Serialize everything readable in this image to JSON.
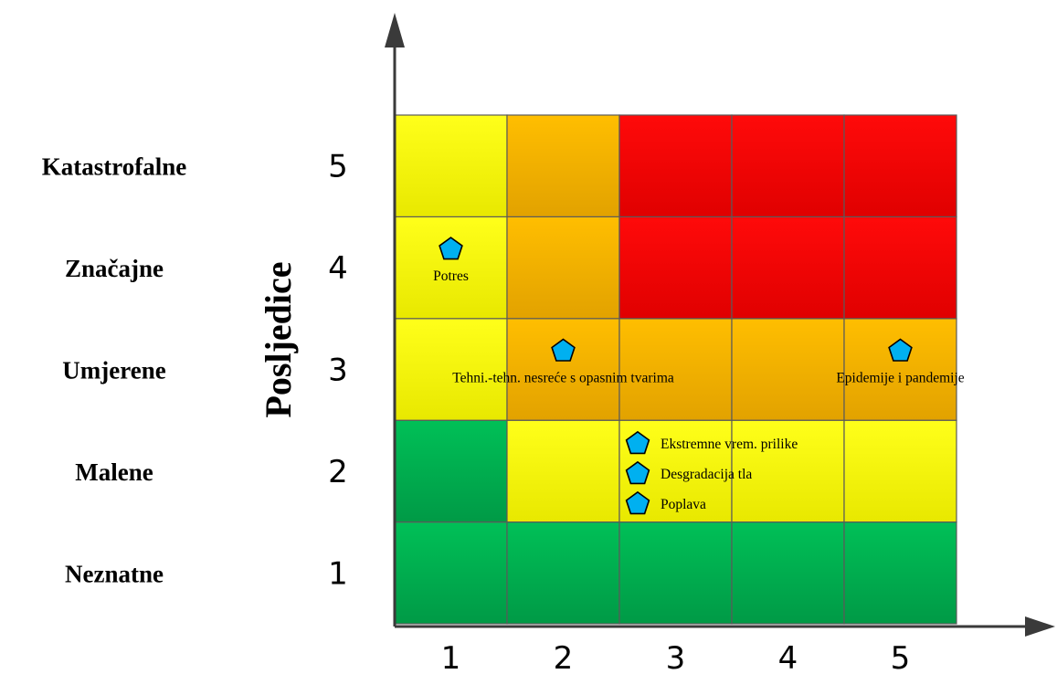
{
  "chart_data": {
    "type": "heatmap",
    "ylabel": "Posljedice",
    "xlabel": "",
    "x_ticks": [
      "1",
      "2",
      "3",
      "4",
      "5"
    ],
    "y_ticks": [
      "1",
      "2",
      "3",
      "4",
      "5"
    ],
    "y_categories": [
      "Neznatne",
      "Malene",
      "Umjerene",
      "Značajne",
      "Katastrofalne"
    ],
    "colors": {
      "green": "#00b050",
      "yellow": "#ffff00",
      "orange": "#ffc000",
      "red": "#ff0000"
    },
    "grid": [
      [
        "green",
        "green",
        "green",
        "green",
        "green"
      ],
      [
        "green",
        "yellow",
        "yellow",
        "yellow",
        "yellow"
      ],
      [
        "yellow",
        "orange",
        "orange",
        "orange",
        "orange"
      ],
      [
        "yellow",
        "orange",
        "red",
        "red",
        "red"
      ],
      [
        "yellow",
        "orange",
        "red",
        "red",
        "red"
      ]
    ],
    "risks": [
      {
        "label": "Potres",
        "x": 1,
        "y": 4
      },
      {
        "label": "Tehni.-tehn. nesreće s opasnim tvarima",
        "x": 2,
        "y": 3
      },
      {
        "label": "Epidemije i pandemije",
        "x": 5,
        "y": 3
      },
      {
        "label": "Ekstremne vrem. prilike",
        "x": 3,
        "y": 2
      },
      {
        "label": "Desgradacija tla",
        "x": 3,
        "y": 2
      },
      {
        "label": "Poplava",
        "x": 3,
        "y": 2
      }
    ]
  }
}
